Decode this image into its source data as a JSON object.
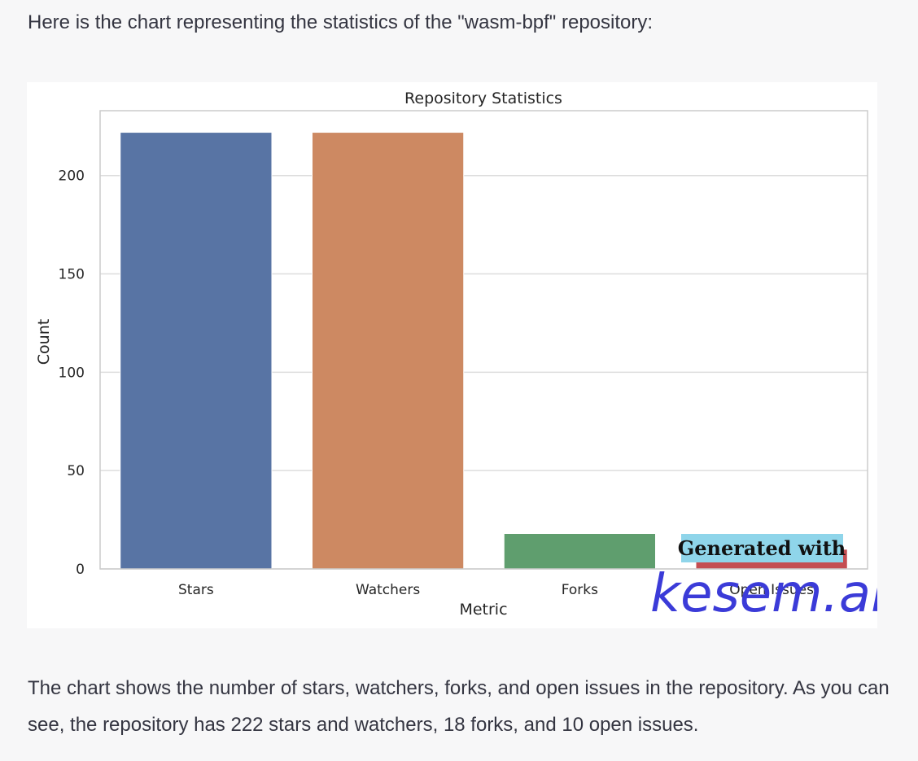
{
  "message": {
    "intro": "Here is the chart representing the statistics of the \"wasm-bpf\" repository:",
    "summary": "The chart shows the number of stars, watchers, forks, and open issues in the repository. As you can see, the repository has 222 stars and watchers, 18 forks, and 10 open issues."
  },
  "chart_data": {
    "type": "bar",
    "title": "Repository Statistics",
    "xlabel": "Metric",
    "ylabel": "Count",
    "categories": [
      "Stars",
      "Watchers",
      "Forks",
      "Open Issues"
    ],
    "values": [
      222,
      222,
      18,
      10
    ],
    "colors": [
      "#5874a4",
      "#cd8962",
      "#5f9e6e",
      "#c44e52"
    ],
    "ylim": [
      0,
      233
    ],
    "yticks": [
      0,
      50,
      100,
      150,
      200
    ],
    "grid": true,
    "legend": "none"
  },
  "watermark": {
    "line1": "Generated with",
    "line2": "kesem.ai"
  }
}
